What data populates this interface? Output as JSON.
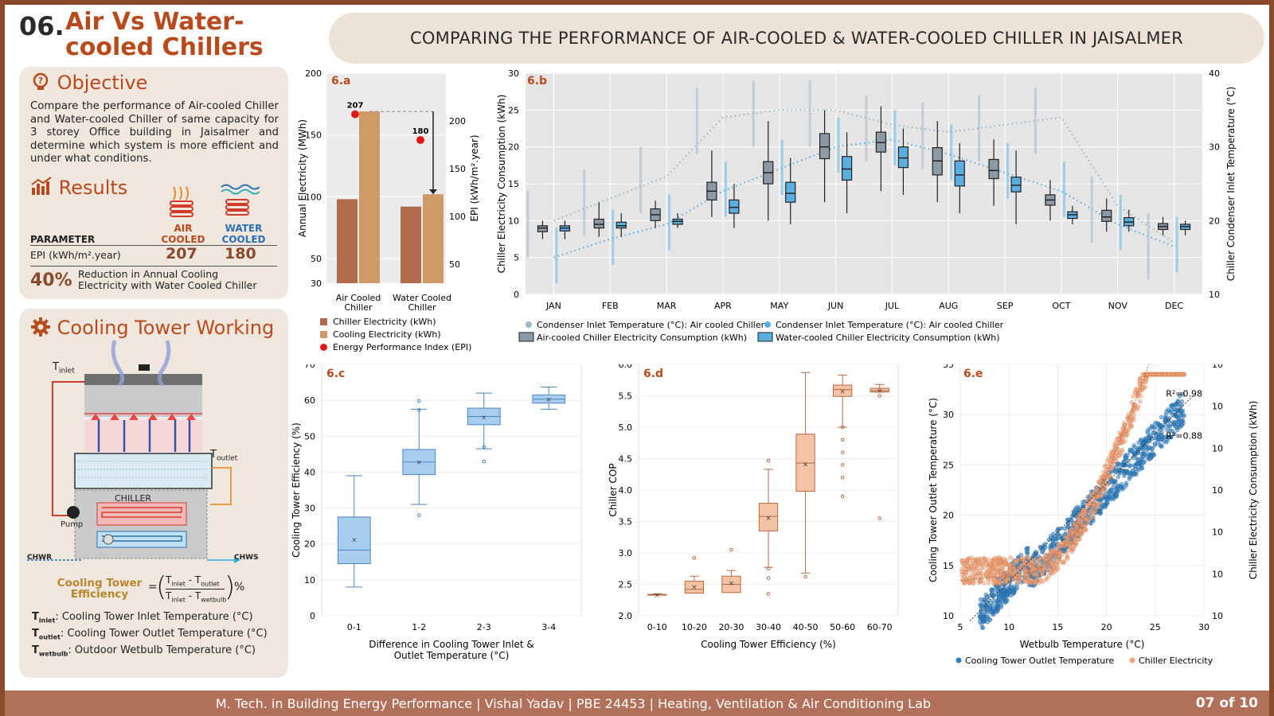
{
  "header": {
    "number": "06.",
    "title_line1": "Air Vs Water-",
    "title_line2": "cooled Chillers",
    "banner": "COMPARING THE PERFORMANCE OF AIR-COOLED & WATER-COOLED CHILLER IN JAISALMER"
  },
  "objective": {
    "heading": "Objective",
    "text": "Compare the performance of Air-cooled Chiller and Water-cooled Chiller of same capacity for 3 storey Office building in Jaisalmer and determine which system is more efficient and under what conditions."
  },
  "results": {
    "heading": "Results",
    "param_label": "PARAMETER",
    "air_label1": "AIR",
    "air_label2": "COOLED",
    "water_label1": "WATER",
    "water_label2": "COOLED",
    "epi_label": "EPI (kWh/m².year)",
    "epi_air": "207",
    "epi_water": "180",
    "reduction_value": "40%",
    "reduction_text1": "Reduction in Annual Cooling",
    "reduction_text2": "Electricity with Water Cooled Chiller"
  },
  "cooling_tower": {
    "heading": "Cooling Tower Working",
    "t_inlet": "T",
    "t_inlet_sub": "inlet",
    "t_outlet_sub": "outlet",
    "chiller_label": "CHILLER",
    "pump_label": "Pump",
    "chwr": "CHWR",
    "chws": "CHWS",
    "eff_label1": "Cooling Tower",
    "eff_label2": "Efficiency",
    "formula_num_a": "T",
    "formula_num_a_sub": "inlet",
    "formula_num_b": "T",
    "formula_num_b_sub": "outlet",
    "formula_den_b_sub": "wetbulb",
    "formula_unit": "%",
    "def1_sub": "inlet",
    "def1": ": Cooling Tower Inlet Temperature (°C)",
    "def2_sub": "outlet",
    "def2": ": Cooling Tower Outlet Temperature (°C)",
    "def3_sub": "wetbulb",
    "def3": ": Outdoor Wetbulb Temperature (°C)"
  },
  "footer": {
    "text": "M. Tech. in Building Energy Performance  |  Vishal Yadav  |  PBE 24453  |  Heating, Ventilation & Air Conditioning Lab",
    "page": "07 of 10"
  },
  "colors": {
    "brand": "#b84a1b",
    "chiller_bar": "#b06a4c",
    "cooling_bar": "#cf9a68",
    "epi_dot": "#e01919",
    "air_box": "#8c9aa6",
    "water_box": "#5aaee0",
    "ct_box": "#a9cdee",
    "cop_box": "#f4c2a4",
    "scatter_blue": "#2f7fc1",
    "scatter_orange": "#f0a37a"
  },
  "chart_data": [
    {
      "id": "6.a",
      "type": "bar",
      "categories": [
        "Air Cooled Chiller",
        "Water Cooled Chiller"
      ],
      "series": [
        {
          "name": "Chiller Electricity (kWh)",
          "values": [
            98,
            92
          ]
        },
        {
          "name": "Cooling Electricity (kWh)",
          "values": [
            169,
            102
          ]
        },
        {
          "name": "Energy Performance Index (EPI)",
          "axis": "right",
          "values": [
            207,
            180
          ]
        }
      ],
      "epi_labels": [
        "207",
        "180"
      ],
      "ylabel": "Annual Electricity (MWh)",
      "ylabel_right": "EPI (kWh/m².year)",
      "ylim": [
        30,
        200
      ],
      "yticks": [
        30,
        50,
        100,
        150,
        200
      ],
      "ylim_right": [
        30,
        250
      ],
      "yticks_right": [
        50,
        100,
        150,
        200
      ],
      "x_labels": [
        [
          "Air Cooled",
          "Chiller"
        ],
        [
          "Water Cooled",
          "Chiller"
        ]
      ]
    },
    {
      "id": "6.b",
      "type": "box",
      "categories": [
        "JAN",
        "FEB",
        "MAR",
        "APR",
        "MAY",
        "JUN",
        "JUL",
        "AUG",
        "SEP",
        "OCT",
        "NOV",
        "DEC"
      ],
      "ylabel": "Chiller Electricity Consumption (kWh)",
      "ylabel_right": "Chiller Condenser Inlet Temperature (°C)",
      "ylim": [
        0,
        30
      ],
      "yticks": [
        0,
        5,
        10,
        15,
        20,
        25,
        30
      ],
      "ylim_right": [
        10,
        40
      ],
      "yticks_right": [
        10,
        20,
        30,
        40
      ],
      "series": [
        {
          "name": "Air-cooled Chiller Electricity Consumption (kWh)",
          "boxes": [
            [
              7.5,
              8.5,
              9,
              9.3,
              10
            ],
            [
              7.8,
              9,
              9.5,
              10.2,
              12.5
            ],
            [
              9,
              10,
              10.8,
              11.6,
              12.7
            ],
            [
              10.5,
              12.8,
              14,
              15.2,
              19.5
            ],
            [
              10,
              15,
              16.5,
              18,
              23.5
            ],
            [
              12.5,
              18.4,
              20,
              21.8,
              25
            ],
            [
              14,
              19.3,
              20.6,
              22,
              25.5
            ],
            [
              12.5,
              16.2,
              18.1,
              19.9,
              23.5
            ],
            [
              12,
              15.7,
              16.8,
              18.3,
              21
            ],
            [
              10,
              12.1,
              12.8,
              13.5,
              15.5
            ],
            [
              8.5,
              9.9,
              10.5,
              11.4,
              13
            ],
            [
              8,
              8.8,
              9.2,
              9.6,
              10.5
            ]
          ]
        },
        {
          "name": "Water-cooled Chiller Electricity Consumption (kWh)",
          "boxes": [
            [
              7.5,
              8.6,
              9,
              9.3,
              10
            ],
            [
              7.8,
              9,
              9.3,
              9.8,
              11
            ],
            [
              9,
              9.5,
              9.9,
              10.2,
              11
            ],
            [
              9,
              11,
              11.8,
              12.8,
              15
            ],
            [
              9.5,
              12.5,
              13.7,
              15.2,
              18.5
            ],
            [
              11,
              15.5,
              17,
              18.7,
              22
            ],
            [
              13.5,
              17.2,
              18.5,
              20,
              22.5
            ],
            [
              11,
              14.7,
              16.2,
              18.1,
              20.5
            ],
            [
              9.5,
              13.9,
              14.8,
              15.9,
              19.5
            ],
            [
              9.5,
              10.3,
              10.8,
              11.2,
              12
            ],
            [
              8.5,
              9.3,
              9.8,
              10.4,
              11.5
            ],
            [
              8,
              8.8,
              9.2,
              9.5,
              10
            ]
          ]
        },
        {
          "name": "Condenser Inlet Temperature (°C): Air cooled Chiller",
          "axis": "right",
          "values": [
            20,
            23,
            26,
            34,
            35,
            35,
            33,
            32,
            33,
            34,
            22,
            17
          ]
        },
        {
          "name": "Condenser Inlet Temperature (°C): Air cooled Chiller",
          "axis": "right",
          "values": [
            15,
            17.5,
            19.5,
            24,
            27,
            30,
            31,
            29,
            26.5,
            24,
            19.5,
            16.5
          ]
        }
      ]
    },
    {
      "id": "6.c",
      "type": "box",
      "categories": [
        "0-1",
        "1-2",
        "2-3",
        "3-4"
      ],
      "boxes": [
        [
          8,
          14.5,
          18.3,
          27.5,
          39
        ],
        [
          31,
          39.3,
          42.8,
          46.3,
          57.5
        ],
        [
          46.5,
          53.2,
          55.5,
          57.8,
          62
        ],
        [
          57.5,
          59.2,
          60.3,
          61.5,
          63.7
        ]
      ],
      "means": [
        21.2,
        42.8,
        55.3,
        60.3
      ],
      "xlabel": "Difference in Cooling Tower Inlet & Outlet Temperature (°C)",
      "ylabel": "Cooling Tower Efficiency (%)",
      "ylim": [
        0,
        70
      ],
      "yticks": [
        0,
        10,
        20,
        30,
        40,
        50,
        60,
        70
      ]
    },
    {
      "id": "6.d",
      "type": "box",
      "categories": [
        "0-10",
        "10-20",
        "20-30",
        "30-40",
        "40-50",
        "50-60",
        "60-70"
      ],
      "boxes": [
        [
          2.33,
          2.33,
          2.34,
          2.34,
          2.35
        ],
        [
          2.36,
          2.36,
          2.42,
          2.55,
          2.63
        ],
        [
          2.37,
          2.37,
          2.5,
          2.63,
          2.72
        ],
        [
          2.77,
          3.35,
          3.58,
          3.79,
          4.33
        ],
        [
          2.68,
          3.98,
          4.43,
          4.89,
          5.87
        ],
        [
          5.0,
          5.49,
          5.6,
          5.67,
          5.83
        ],
        [
          5.56,
          5.56,
          5.58,
          5.62,
          5.68
        ]
      ],
      "means": [
        2.33,
        2.46,
        2.52,
        3.56,
        4.41,
        5.57,
        5.58
      ],
      "xlabel": "Cooling Tower Efficiency (%)",
      "ylabel": "Chiller COP",
      "ylim": [
        2.0,
        6.0
      ],
      "yticks": [
        2.0,
        2.5,
        3.0,
        3.5,
        4.0,
        4.5,
        5.0,
        5.5,
        6.0
      ]
    },
    {
      "id": "6.e",
      "type": "scatter",
      "xlabel": "Wetbulb Temperature (°C)",
      "ylabel": "Cooling Tower Outlet Temperature (°C)",
      "ylabel_right": "Chiller Electricity Consumption (kWh)",
      "xlim": [
        5,
        30
      ],
      "xticks": [
        5,
        10,
        15,
        20,
        25,
        30
      ],
      "ylim": [
        10,
        35
      ],
      "yticks": [
        10,
        15,
        20,
        25,
        30,
        35
      ],
      "yticks_right_labels": [
        "10",
        "10",
        "10",
        "10",
        "10",
        "10",
        "10"
      ],
      "series": [
        {
          "name": "Cooling Tower Outlet Temperature",
          "r2": "R²=0.98"
        },
        {
          "name": "Chiller Electricity",
          "r2": "R²=0.88"
        }
      ]
    }
  ],
  "legend_6a": [
    "Chiller Electricity (kWh)",
    "Cooling Electricity (kWh)",
    "Energy Performance Index (EPI)"
  ],
  "legend_6b": [
    "Condenser Inlet Temperature (°C): Air cooled Chiller",
    "Condenser Inlet Temperature (°C): Air cooled Chiller",
    "Air-cooled Chiller Electricity Consumption (kWh)",
    "Water-cooled Chiller Electricity Consumption (kWh)"
  ],
  "legend_6e": [
    "Cooling Tower Outlet Temperature",
    "Chiller Electricity"
  ],
  "icons": [
    "bulb-icon",
    "chart-icon",
    "gear-icon",
    "heat-icon",
    "wave-icon"
  ]
}
